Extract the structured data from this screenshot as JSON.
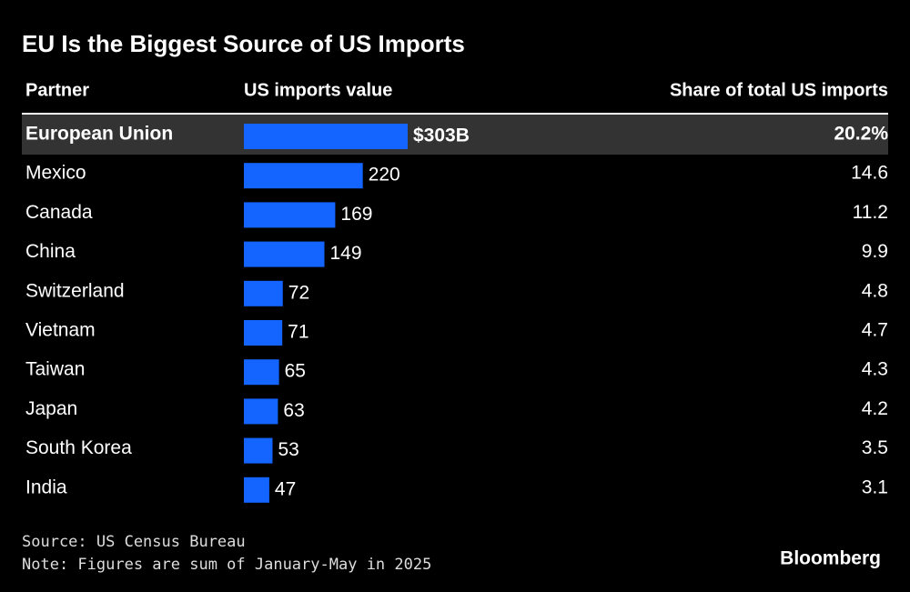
{
  "chart_data": {
    "type": "table-bar",
    "title": "EU Is the Biggest Source of US Imports",
    "category_label": "Partner",
    "categories": [
      "European Union",
      "Mexico",
      "Canada",
      "China",
      "Switzerland",
      "Vietnam",
      "Taiwan",
      "Japan",
      "South Korea",
      "India"
    ],
    "series": [
      {
        "name": "US imports value",
        "color": "#1464ff",
        "values": [
          303,
          220,
          169,
          149,
          72,
          71,
          65,
          63,
          53,
          47
        ],
        "value_labels": [
          "$303B",
          "220",
          "169",
          "149",
          "72",
          "71",
          "65",
          "63",
          "53",
          "47"
        ]
      },
      {
        "name": "Share of total US imports",
        "values": [
          20.2,
          14.6,
          11.2,
          9.9,
          4.8,
          4.7,
          4.3,
          4.2,
          3.5,
          3.1
        ],
        "value_labels": [
          "20.2%",
          "14.6",
          "11.2",
          "9.9",
          "4.8",
          "4.7",
          "4.3",
          "4.2",
          "3.5",
          "3.1"
        ]
      }
    ],
    "source": "Source: US Census Bureau",
    "note": "Note: Figures are sum of January-May in 2025",
    "logo": "Bloomberg"
  }
}
